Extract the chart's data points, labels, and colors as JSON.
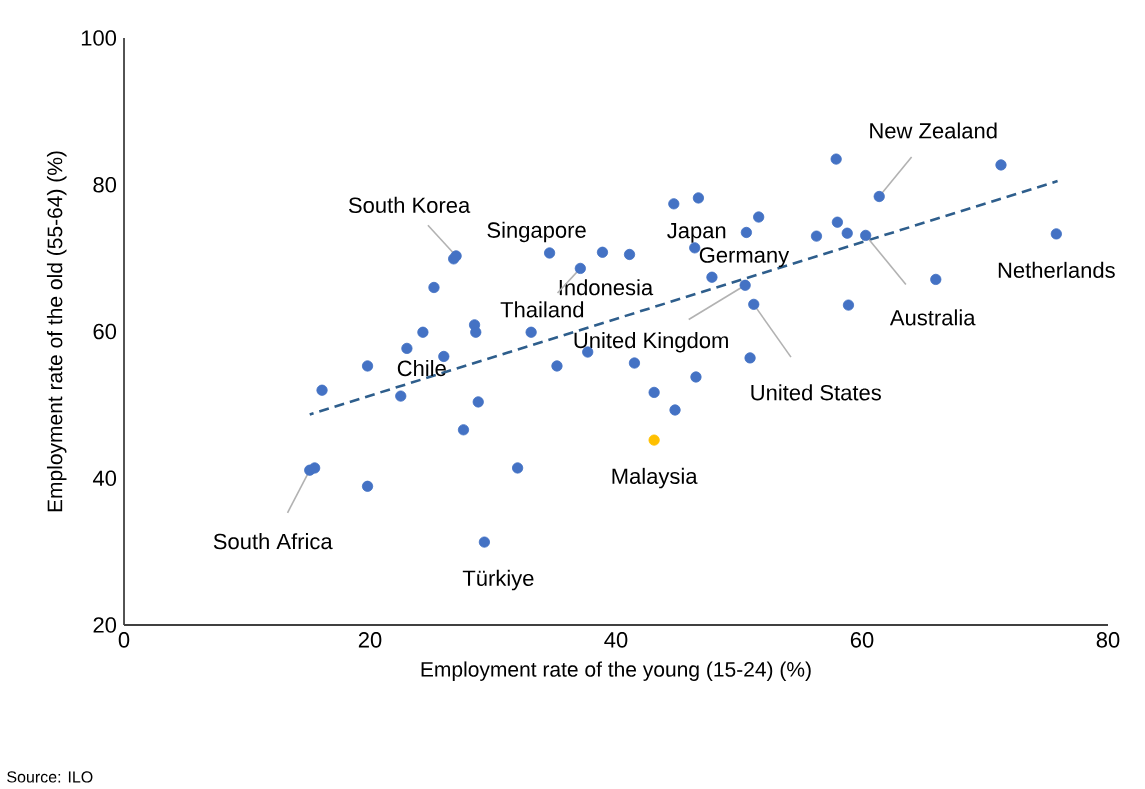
{
  "chart_data": {
    "type": "scatter",
    "xlabel": "Employment rate of the young (15-24) (%)",
    "ylabel": "Employment rate of the old (55-64) (%)",
    "xlim": [
      0,
      80
    ],
    "ylim": [
      20,
      100
    ],
    "xticks": [
      0,
      20,
      40,
      60,
      80
    ],
    "yticks": [
      20,
      40,
      60,
      80,
      100
    ],
    "grid": false,
    "series": [
      {
        "color": "#4472c4",
        "marker": "circle",
        "x": [
          15.1,
          15.5,
          16.1,
          19.8,
          19.8,
          22.5,
          23.0,
          24.3,
          25.2,
          26.0,
          26.8,
          27.0,
          28.5,
          28.6,
          28.8,
          27.6,
          29.3,
          32.0,
          33.1,
          34.6,
          35.2,
          37.1,
          37.7,
          38.9,
          41.1,
          41.5,
          43.1,
          44.8,
          44.7,
          46.7,
          46.4,
          46.5,
          47.8,
          50.6,
          51.6,
          50.5,
          51.2,
          50.9,
          56.3,
          57.9,
          58.0,
          58.8,
          60.3,
          58.9,
          61.4,
          66.0,
          71.3,
          75.8
        ],
        "values": [
          41.1,
          41.4,
          52.0,
          55.3,
          38.9,
          51.2,
          57.7,
          59.9,
          66.0,
          56.6,
          69.9,
          70.3,
          60.9,
          59.9,
          50.4,
          46.6,
          31.3,
          41.4,
          59.9,
          70.7,
          55.3,
          68.6,
          57.2,
          70.8,
          70.5,
          55.7,
          51.7,
          49.3,
          77.4,
          78.2,
          71.4,
          53.8,
          67.4,
          73.5,
          75.6,
          66.3,
          63.7,
          56.4,
          73.0,
          83.5,
          74.9,
          73.4,
          73.1,
          63.6,
          78.4,
          67.1,
          82.7,
          73.3
        ]
      },
      {
        "color": "#ffc000",
        "marker": "circle",
        "x": [
          43.1
        ],
        "values": [
          45.2
        ]
      },
      {
        "type": "line",
        "line_style": "dashed",
        "marker": "none",
        "color": "#2e5e8c",
        "x": [
          15.1,
          75.9
        ],
        "values": [
          48.7,
          80.5
        ]
      }
    ],
    "annotations": [
      {
        "text": "South Korea",
        "x": 27.0,
        "y": 70.3
      },
      {
        "text": "Singapore",
        "x": 34.6,
        "y": 70.7
      },
      {
        "text": "Japan",
        "x": 46.4,
        "y": 71.4
      },
      {
        "text": "Indonesia",
        "x": 38.9,
        "y": 70.8
      },
      {
        "text": "Thailand",
        "x": 37.1,
        "y": 68.6
      },
      {
        "text": "Germany",
        "x": 47.8,
        "y": 67.4
      },
      {
        "text": "United Kingdom",
        "x": 50.5,
        "y": 66.3
      },
      {
        "text": "United States",
        "x": 51.2,
        "y": 63.7
      },
      {
        "text": "New Zealand",
        "x": 61.4,
        "y": 78.4
      },
      {
        "text": "Australia",
        "x": 60.3,
        "y": 73.1
      },
      {
        "text": "Netherlands",
        "x": 75.8,
        "y": 73.3
      },
      {
        "text": "Chile",
        "x": 22.5,
        "y": 51.2
      },
      {
        "text": "South Africa",
        "x": 15.1,
        "y": 41.1
      },
      {
        "text": "Türkiye",
        "x": 29.3,
        "y": 31.3
      },
      {
        "text": "Malaysia",
        "x": 43.1,
        "y": 45.2
      },
      "Source: ILO"
    ]
  }
}
